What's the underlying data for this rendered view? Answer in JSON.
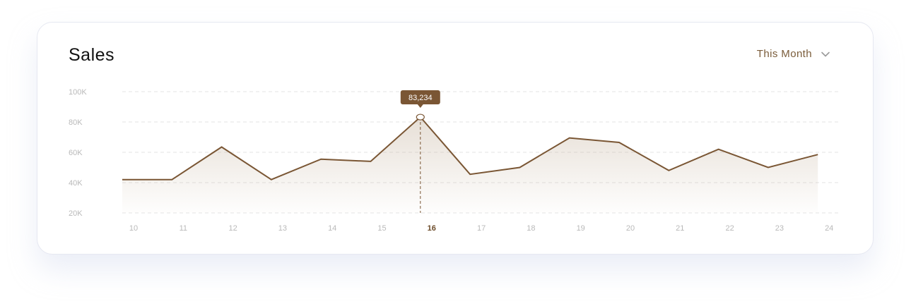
{
  "header": {
    "title": "Sales",
    "period_label": "This Month"
  },
  "icons": {
    "period_dropdown": "chevron-down-icon"
  },
  "colors": {
    "line": "#7a5634",
    "accent": "#7a5634",
    "tooltip_bg": "#7a5634",
    "grid": "#e3e3e3",
    "tick_text": "#b9b9b9",
    "active_tick": "#6b4a28"
  },
  "chart_data": {
    "type": "area",
    "title": "Sales",
    "x": [
      "10",
      "11",
      "12",
      "13",
      "14",
      "15",
      "16",
      "17",
      "18",
      "19",
      "20",
      "21",
      "22",
      "23",
      "24"
    ],
    "series": [
      {
        "values": [
          42000,
          42000,
          63500,
          42000,
          55500,
          54000,
          83234,
          45500,
          50000,
          69500,
          66500,
          48000,
          62000,
          50000,
          58500
        ]
      }
    ],
    "y_ticks": [
      "100K",
      "80K",
      "60K",
      "40K",
      "20K"
    ],
    "ylim": [
      20000,
      100000
    ],
    "grid": true,
    "highlight": {
      "x": "16",
      "label": "83,234"
    }
  }
}
